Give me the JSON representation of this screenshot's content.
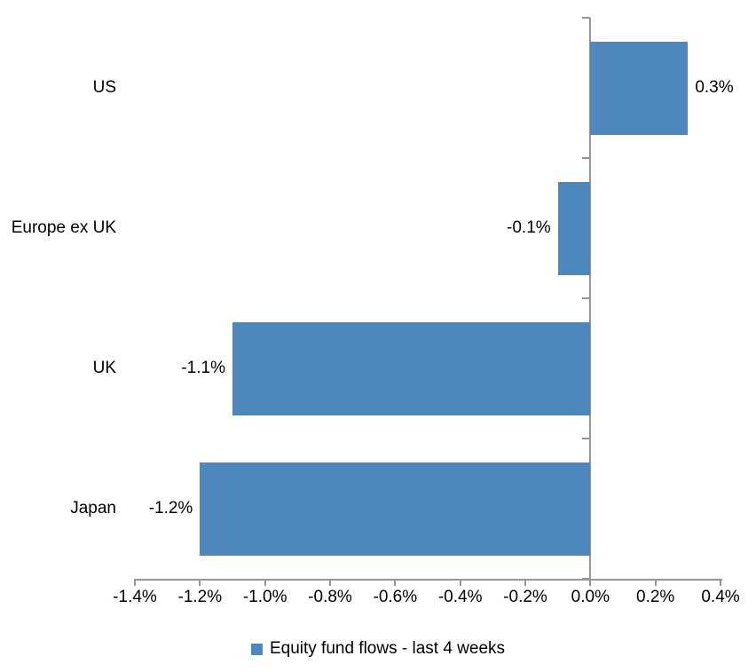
{
  "chart_data": {
    "type": "bar",
    "orientation": "horizontal",
    "title": "",
    "categories": [
      "US",
      "Europe ex UK",
      "UK",
      "Japan"
    ],
    "series": [
      {
        "name": "Equity fund flows - last 4 weeks",
        "values": [
          0.3,
          -0.1,
          -1.1,
          -1.2
        ],
        "labels": [
          "0.3%",
          "-0.1%",
          "-1.1%",
          "-1.2%"
        ],
        "color": "#4e86be"
      }
    ],
    "xlim": [
      -1.4,
      0.4
    ],
    "x_ticks": [
      {
        "value": -1.4,
        "label": "-1.4%"
      },
      {
        "value": -1.2,
        "label": "-1.2%"
      },
      {
        "value": -1.0,
        "label": "-1.0%"
      },
      {
        "value": -0.8,
        "label": "-0.8%"
      },
      {
        "value": -0.6,
        "label": "-0.6%"
      },
      {
        "value": -0.4,
        "label": "-0.4%"
      },
      {
        "value": -0.2,
        "label": "-0.2%"
      },
      {
        "value": 0.0,
        "label": "0.0%"
      },
      {
        "value": 0.2,
        "label": "0.2%"
      },
      {
        "value": 0.4,
        "label": "0.4%"
      }
    ],
    "legend": {
      "position": "bottom",
      "entries": [
        {
          "label": "Equity fund flows - last 4 weeks",
          "swatch_color": "#4e86be"
        }
      ]
    },
    "grid": false,
    "axis_color": "#969696",
    "text_color": "#000000",
    "background": "#ffffff"
  }
}
